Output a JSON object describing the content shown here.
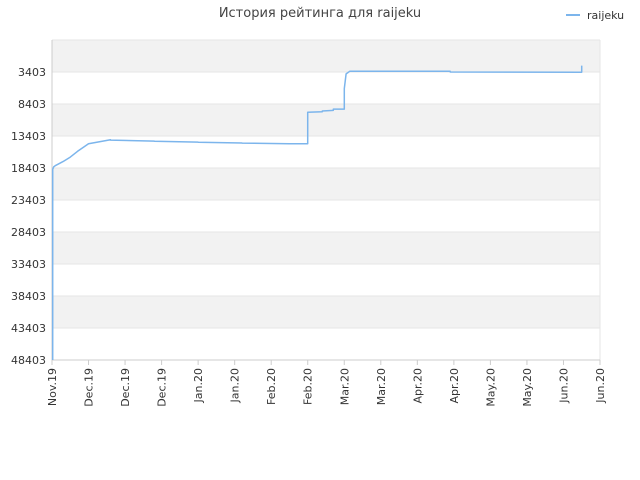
{
  "chart_data": {
    "type": "line",
    "title": "История рейтинга для raijeku",
    "xlabel": "",
    "ylabel": "",
    "y_inverted": true,
    "ylim": [
      -1597,
      48403
    ],
    "yticks": [
      3403,
      8403,
      13403,
      18403,
      23403,
      28403,
      33403,
      38403,
      43403,
      48403
    ],
    "xlim": [
      0,
      15
    ],
    "xtick_labels": [
      "Nov.19",
      "Dec.19",
      "Dec.19",
      "Dec.19",
      "Jan.20",
      "Jan.20",
      "Feb.20",
      "Feb.20",
      "Mar.20",
      "Mar.20",
      "Apr.20",
      "Apr.20",
      "May.20",
      "May.20",
      "Jun.20",
      "Jun.20"
    ],
    "grid": true,
    "legend_position": "top-right",
    "colors": {
      "series": "#7cb5ec",
      "band": "#f2f2f2",
      "grid": "#e6e6e6"
    },
    "series": [
      {
        "name": "raijeku",
        "x": [
          0.02,
          0.02,
          0.05,
          0.1,
          0.3,
          0.5,
          0.7,
          0.9,
          1.0,
          1.6,
          1.6,
          2.8,
          2.8,
          4.0,
          4.0,
          5.2,
          5.2,
          6.5,
          6.5,
          7.0,
          7.0,
          7.4,
          7.4,
          7.7,
          7.7,
          8.0,
          8.0,
          8.05,
          8.1,
          8.15,
          8.3,
          10.9,
          10.9,
          14.5,
          14.5
        ],
        "y": [
          48400,
          18600,
          18200,
          18000,
          17400,
          16700,
          15800,
          15000,
          14600,
          14000,
          14050,
          14200,
          14230,
          14350,
          14380,
          14500,
          14520,
          14600,
          14620,
          14600,
          9700,
          9600,
          9500,
          9400,
          9200,
          9200,
          6000,
          3700,
          3500,
          3300,
          3300,
          3300,
          3400,
          3450,
          2400
        ]
      }
    ]
  }
}
